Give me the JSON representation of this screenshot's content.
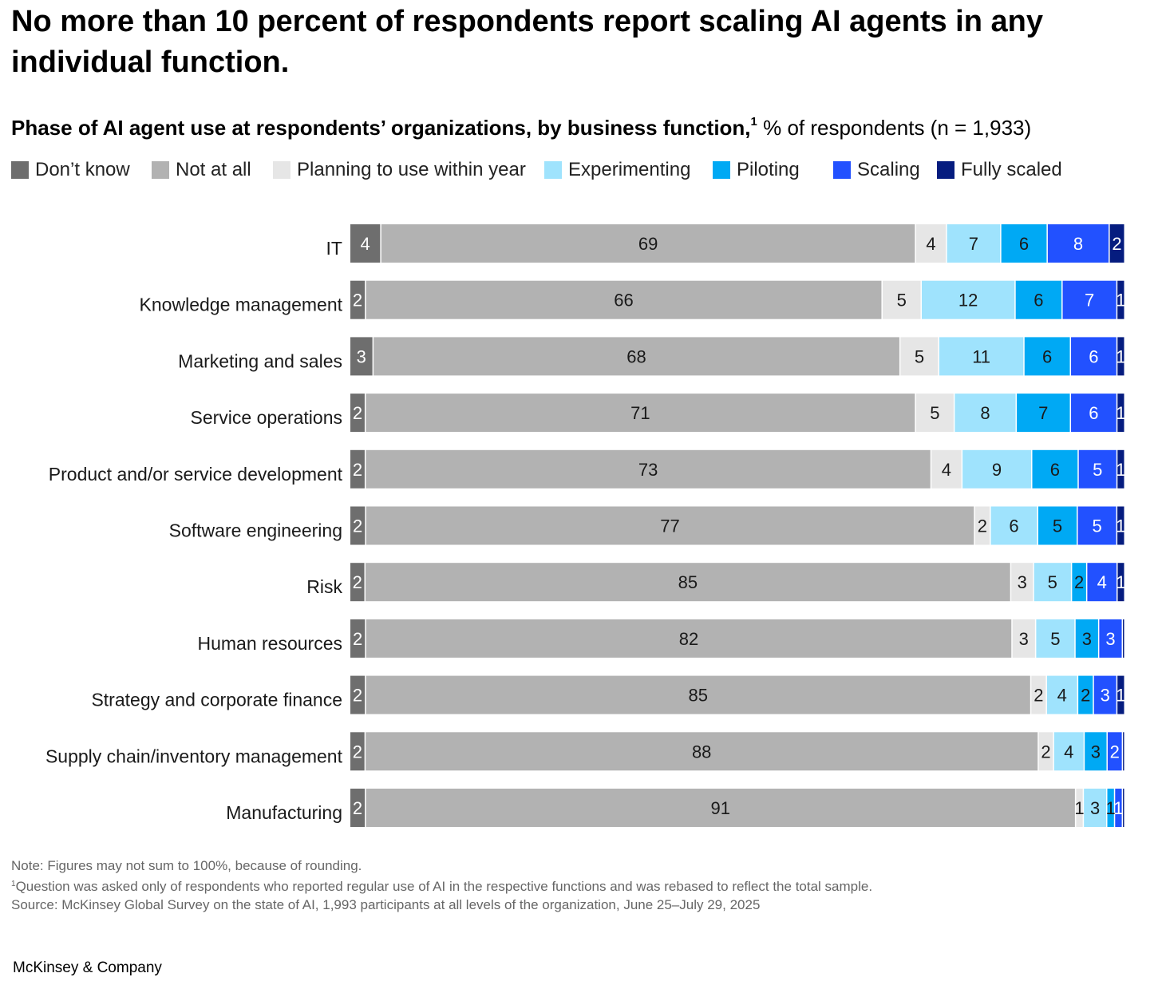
{
  "title": "No more than 10 percent of respondents report scaling AI agents in any individual function.",
  "subtitle": {
    "bold": "Phase of AI agent use at respondents’ organizations, by business function,",
    "footnote_marker": "1",
    "regular": " % of respondents (n = 1,933)"
  },
  "colors": {
    "dont_know": "#6e6e6e",
    "not_at_all": "#b2b2b2",
    "planning": "#e6e6e6",
    "experimenting": "#9fe3fd",
    "piloting": "#00a9f4",
    "scaling": "#2251ff",
    "fully_scaled": "#051c7f"
  },
  "legend": [
    {
      "label": "Don’t know",
      "color_key": "dont_know"
    },
    {
      "label": "Not at all",
      "color_key": "not_at_all"
    },
    {
      "label": "Planning to use within year",
      "color_key": "planning"
    },
    {
      "label": "Experimenting",
      "color_key": "experimenting"
    },
    {
      "label": "Piloting",
      "color_key": "piloting"
    },
    {
      "label": "Scaling",
      "color_key": "scaling"
    },
    {
      "label": "Fully scaled",
      "color_key": "fully_scaled"
    }
  ],
  "chart_data": {
    "type": "bar",
    "orientation": "horizontal",
    "stacked": true,
    "categories": [
      "IT",
      "Knowledge management",
      "Marketing and sales",
      "Service operations",
      "Product and/or service development",
      "Software engineering",
      "Risk",
      "Human resources",
      "Strategy and corporate finance",
      "Supply chain/inventory management",
      "Manufacturing"
    ],
    "series": [
      {
        "name": "Don’t know",
        "color_key": "dont_know",
        "label_color": "#ffffff",
        "values": [
          4,
          2,
          3,
          2,
          2,
          2,
          2,
          2,
          2,
          2,
          2
        ]
      },
      {
        "name": "Not at all",
        "color_key": "not_at_all",
        "label_color": "#1a1a1a",
        "values": [
          69,
          66,
          68,
          71,
          73,
          77,
          85,
          82,
          85,
          88,
          91
        ]
      },
      {
        "name": "Planning to use within year",
        "color_key": "planning",
        "label_color": "#1a1a1a",
        "values": [
          4,
          5,
          5,
          5,
          4,
          2,
          3,
          3,
          2,
          2,
          1
        ]
      },
      {
        "name": "Experimenting",
        "color_key": "experimenting",
        "label_color": "#1a1a1a",
        "values": [
          7,
          12,
          11,
          8,
          9,
          6,
          5,
          5,
          4,
          4,
          3
        ]
      },
      {
        "name": "Piloting",
        "color_key": "piloting",
        "label_color": "#1a1a1a",
        "values": [
          6,
          6,
          6,
          7,
          6,
          5,
          2,
          3,
          2,
          3,
          1
        ]
      },
      {
        "name": "Scaling",
        "color_key": "scaling",
        "label_color": "#ffffff",
        "values": [
          8,
          7,
          6,
          6,
          5,
          5,
          4,
          3,
          3,
          2,
          1
        ]
      },
      {
        "name": "Fully scaled",
        "color_key": "fully_scaled",
        "label_color": "#ffffff",
        "values": [
          2,
          1,
          1,
          1,
          1,
          1,
          1,
          null,
          1,
          null,
          null
        ]
      }
    ],
    "xlim": [
      0,
      100
    ],
    "grid": false,
    "legend_position": "top"
  },
  "notes": {
    "line1": "Note: Figures may not sum to 100%, because of rounding.",
    "line2_marker": "1",
    "line2": "Question was asked only of respondents who reported regular use of AI in the respective functions and was rebased to reflect the total sample.",
    "line3": "Source: McKinsey Global Survey on the state of AI, 1,993 participants at all levels of the organization, June 25–July 29, 2025"
  },
  "brand": "McKinsey & Company"
}
